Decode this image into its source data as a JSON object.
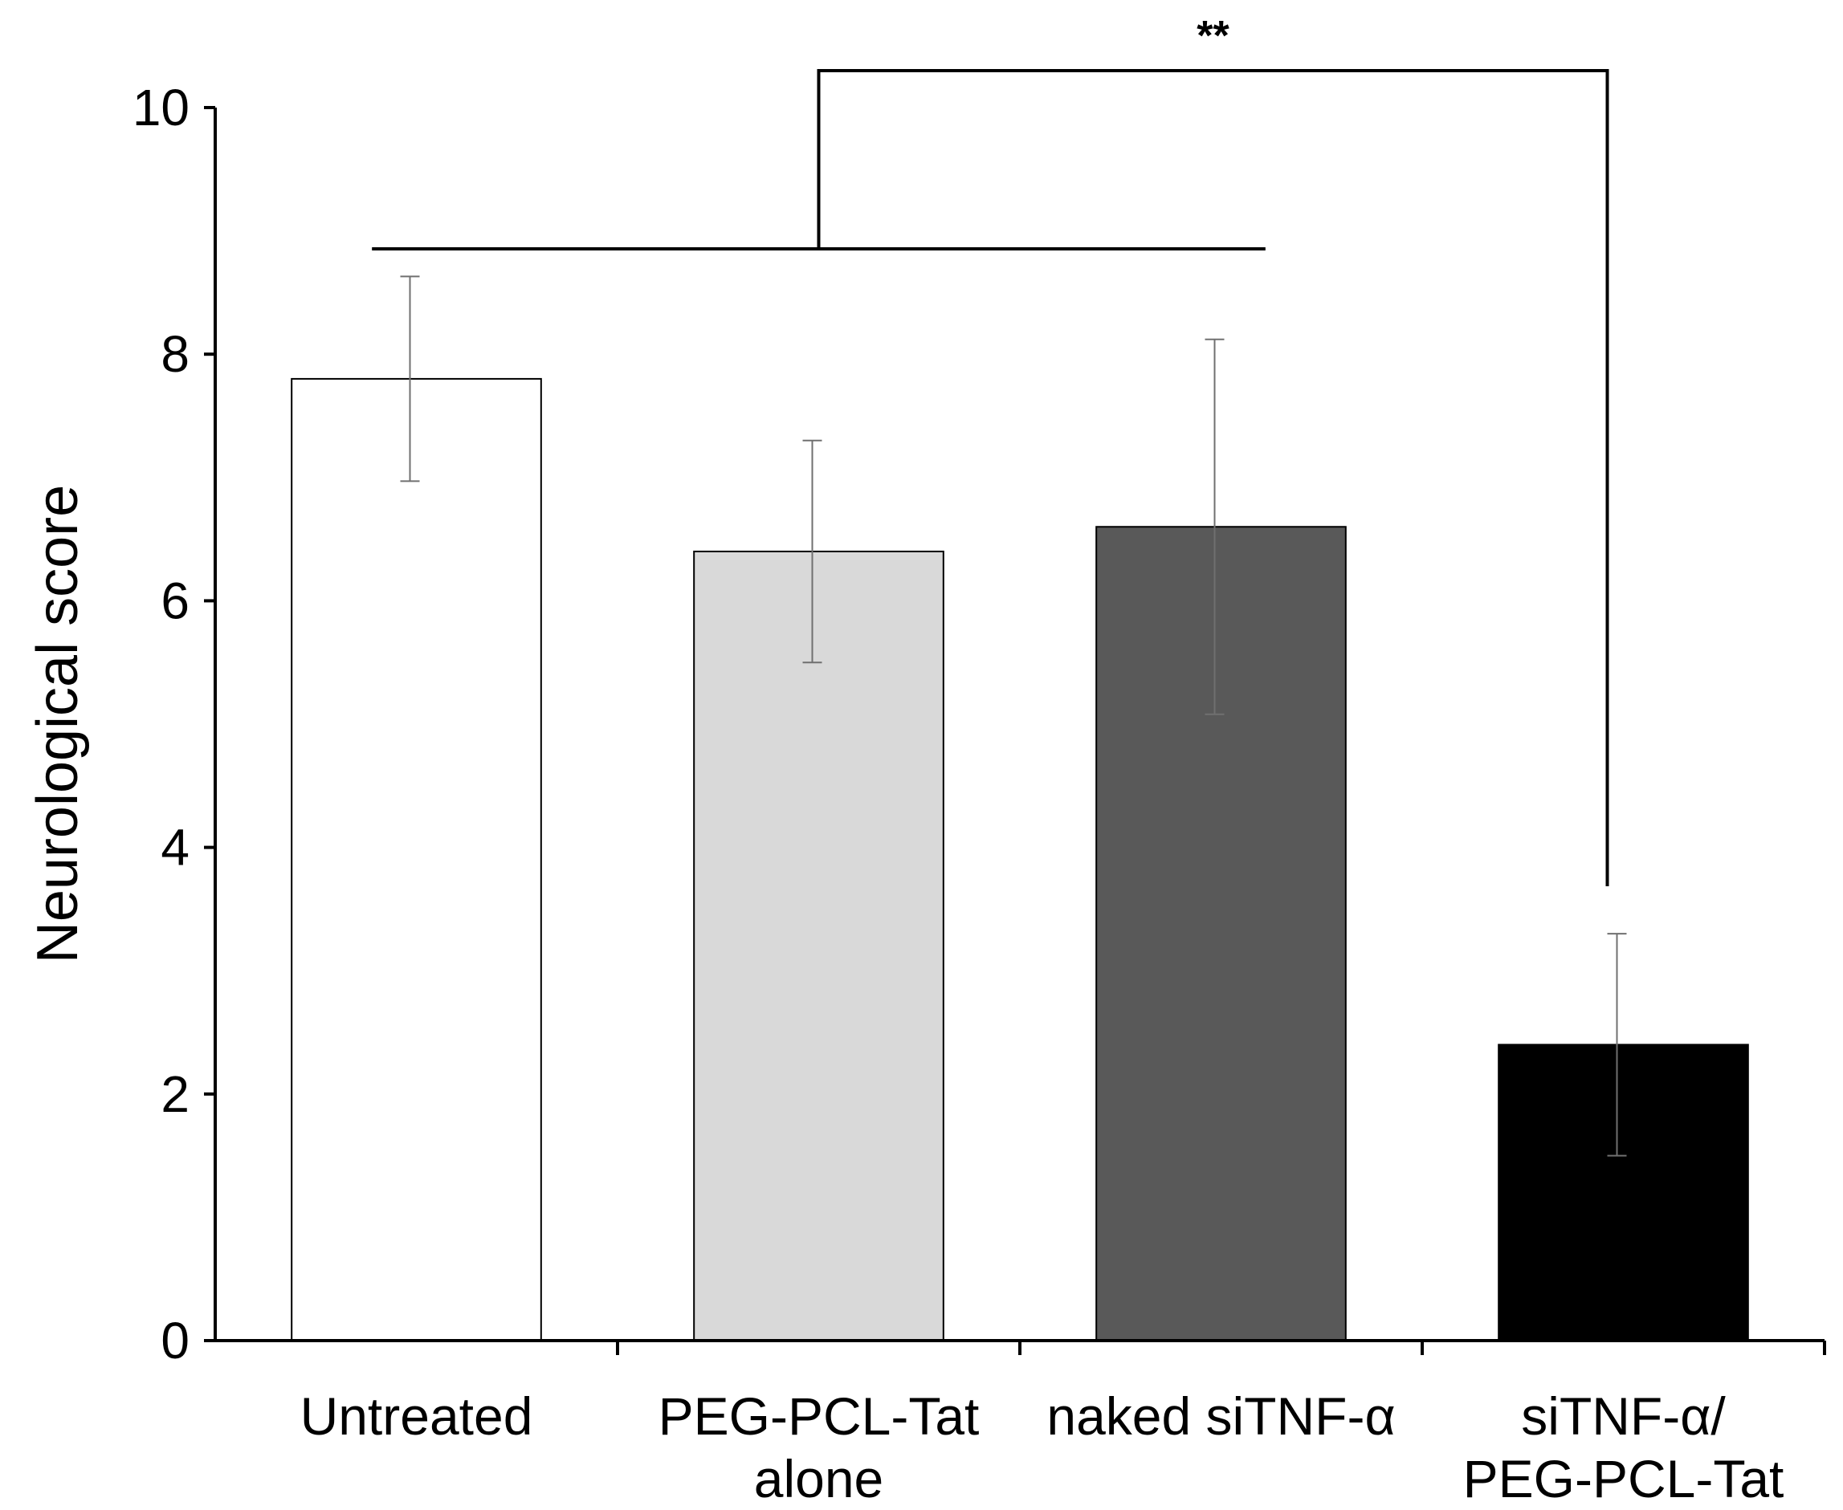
{
  "chart_data": {
    "type": "bar",
    "title": "",
    "xlabel": "",
    "ylabel": "Neurological score",
    "ylim": [
      0,
      10
    ],
    "yticks": [
      0,
      2,
      4,
      6,
      8,
      10
    ],
    "grid": false,
    "categories": [
      [
        "Untreated"
      ],
      [
        "PEG-PCL-Tat",
        "alone"
      ],
      [
        "naked siTNF-α"
      ],
      [
        "siTNF-α/",
        "PEG-PCL-Tat"
      ]
    ],
    "values": [
      7.8,
      6.4,
      6.6,
      2.4
    ],
    "errors": [
      0.83,
      0.9,
      1.52,
      0.9
    ],
    "colors": [
      "#ffffff",
      "#d9d9d9",
      "#595959",
      "#000000"
    ],
    "significance": {
      "label": "**",
      "groups_left": [
        0,
        1,
        2
      ],
      "group_right": 3
    }
  }
}
